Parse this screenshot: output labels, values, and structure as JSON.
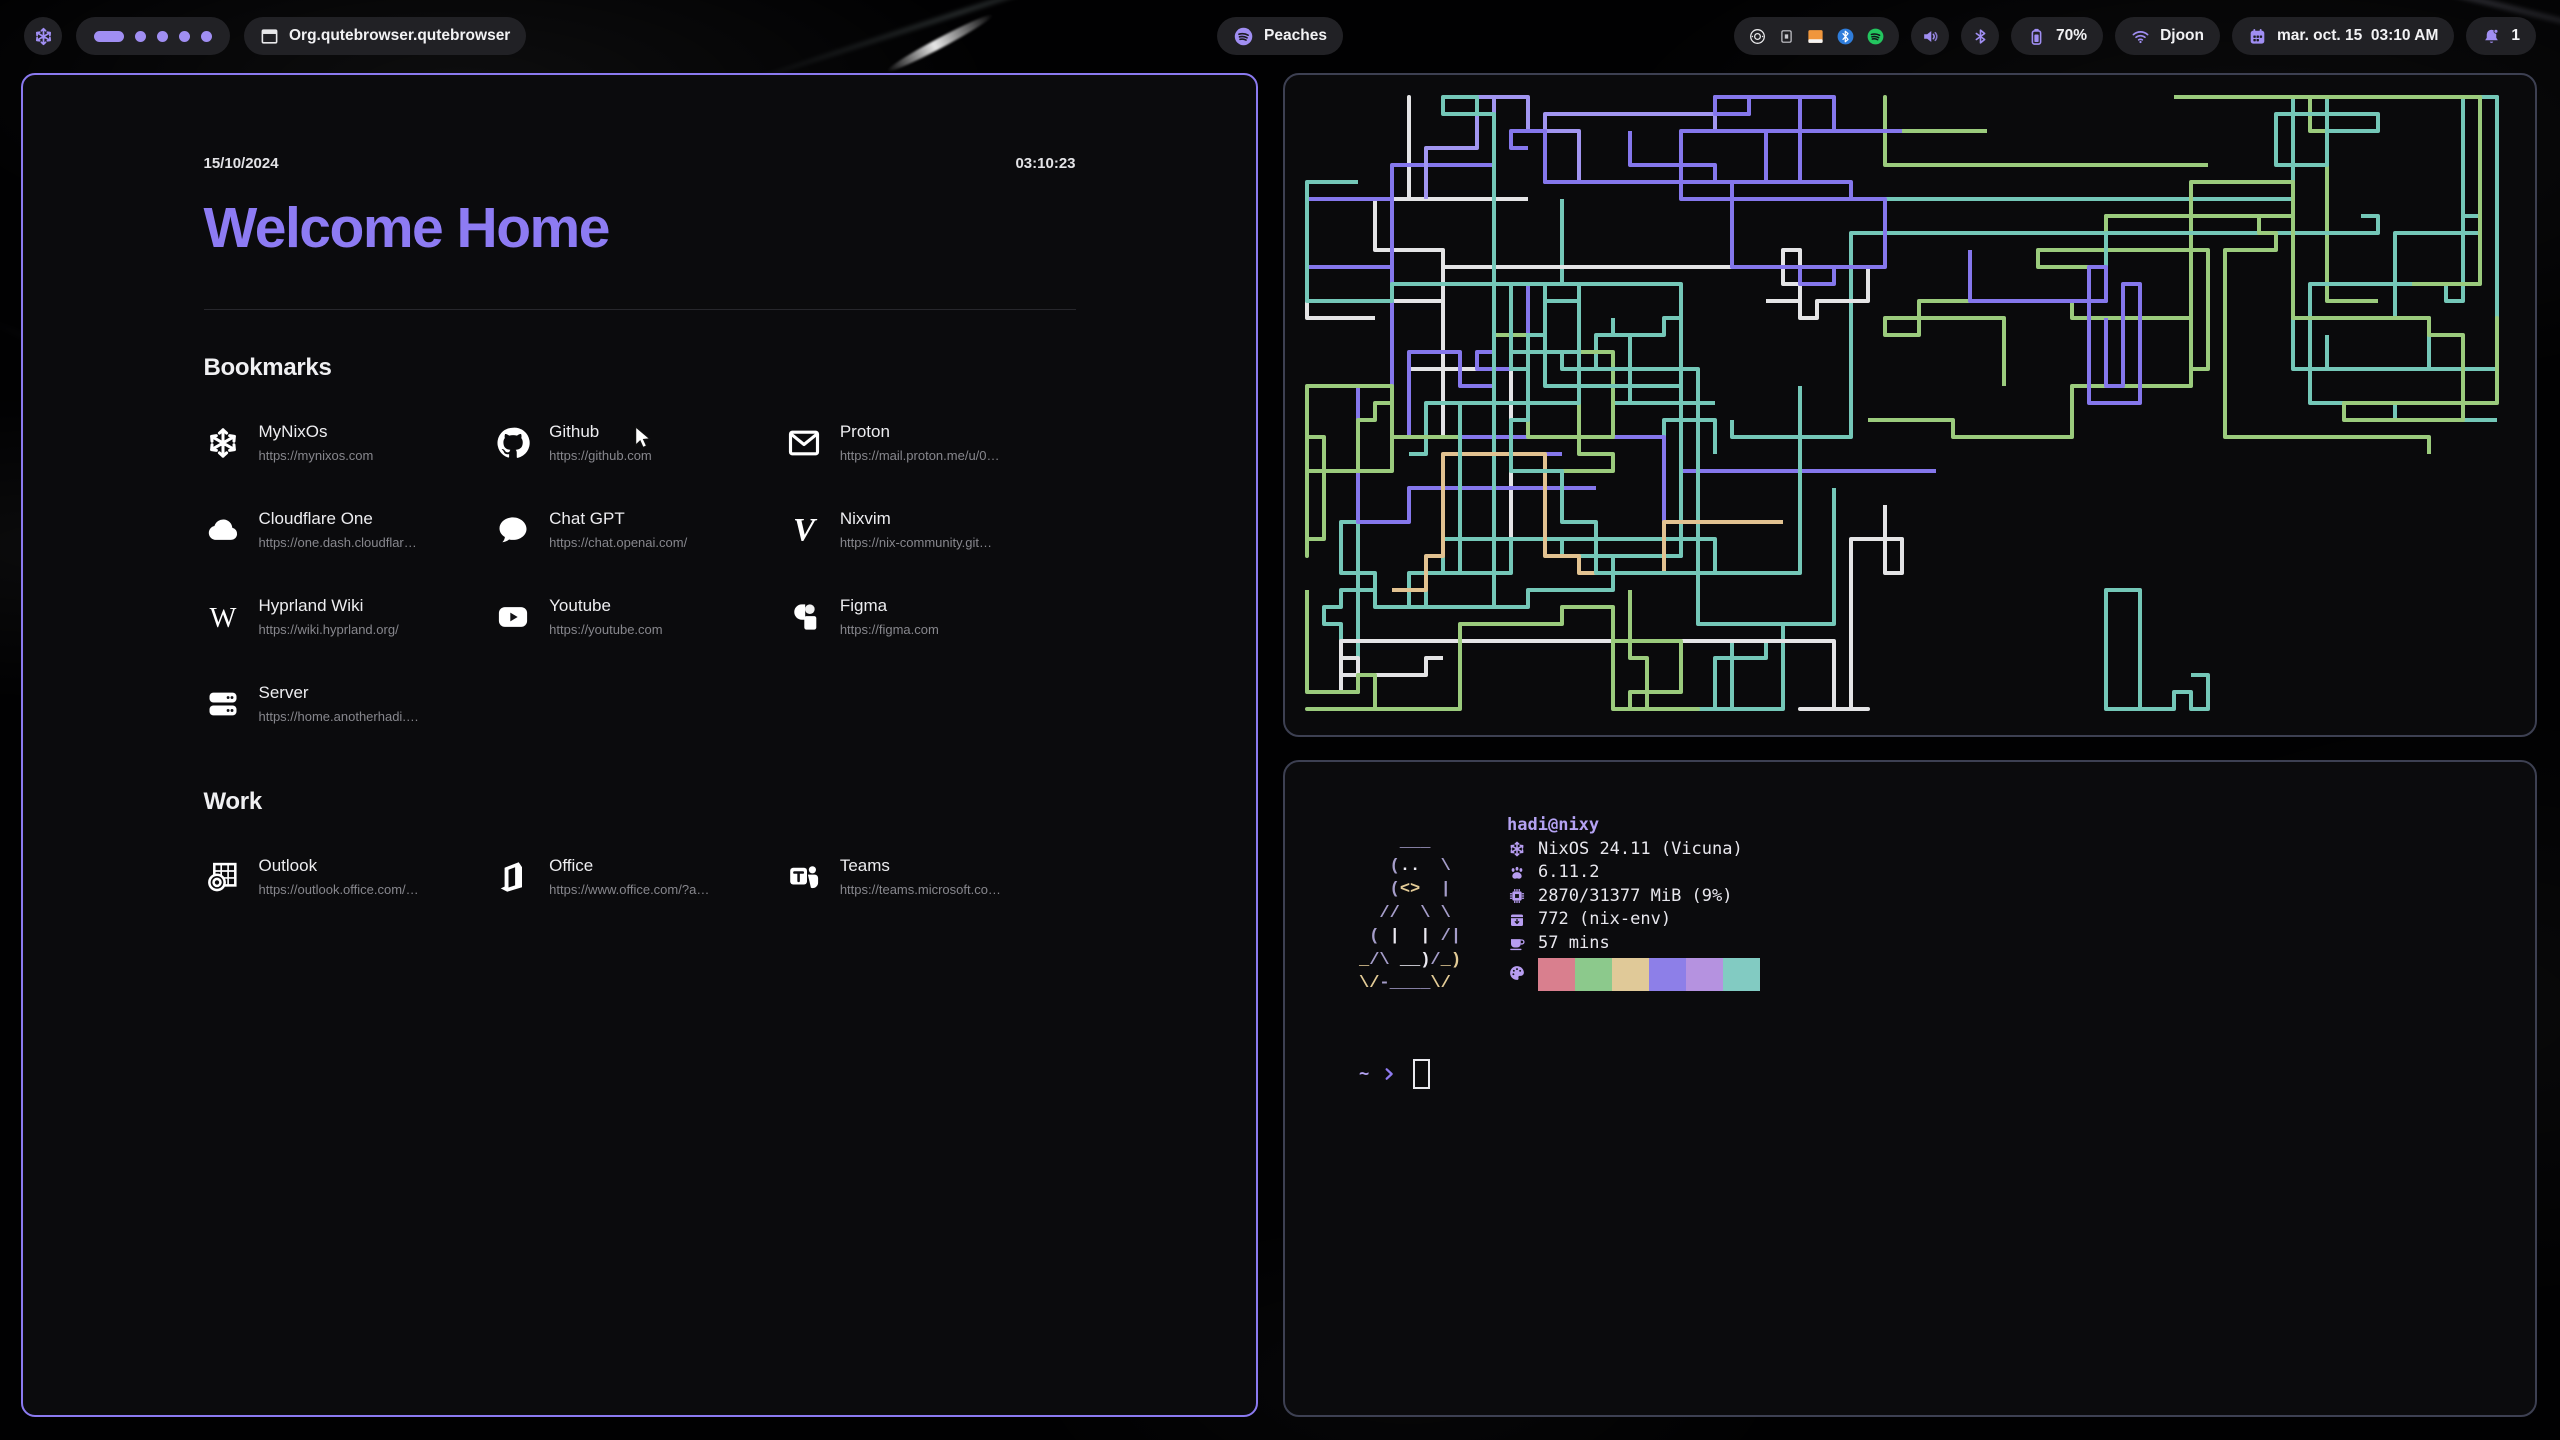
{
  "taskbar": {
    "logo_icon": "nix-snowflake",
    "workspaces": {
      "active_index": 0,
      "total": 5
    },
    "window_icon": "window",
    "window_title": "Org.qutebrowser.qutebrowser",
    "media": {
      "icon": "spotify",
      "label": "Peaches"
    },
    "tray_icons": [
      "record",
      "keyboard",
      "files",
      "bluetooth-badge",
      "spotify-badge"
    ],
    "volume_icon": "speaker",
    "bluetooth_icon": "bluetooth",
    "battery": {
      "icon": "battery",
      "label": "70%"
    },
    "network": {
      "icon": "wifi",
      "label": "Djoon"
    },
    "clock": {
      "icon": "calendar",
      "label": "mar. oct. 15  03:10 AM"
    },
    "notifications": {
      "icon": "bell",
      "count": "1"
    }
  },
  "browser": {
    "date": "15/10/2024",
    "time": "03:10:23",
    "title": "Welcome Home",
    "sections": [
      {
        "heading": "Bookmarks",
        "items": [
          {
            "name": "MyNixOs",
            "url": "https://mynixos.com",
            "icon": "nix-snowflake"
          },
          {
            "name": "Github",
            "url": "https://github.com",
            "icon": "github"
          },
          {
            "name": "Proton",
            "url": "https://mail.proton.me/u/0…",
            "icon": "mail"
          },
          {
            "name": "Cloudflare One",
            "url": "https://one.dash.cloudflar…",
            "icon": "cloud"
          },
          {
            "name": "Chat GPT",
            "url": "https://chat.openai.com/",
            "icon": "chat"
          },
          {
            "name": "Nixvim",
            "url": "https://nix-community.git…",
            "icon": "nixvim"
          },
          {
            "name": "Hyprland Wiki",
            "url": "https://wiki.hyprland.org/",
            "icon": "wikipedia"
          },
          {
            "name": "Youtube",
            "url": "https://youtube.com",
            "icon": "youtube"
          },
          {
            "name": "Figma",
            "url": "https://figma.com",
            "icon": "figma"
          },
          {
            "name": "Server",
            "url": "https://home.anotherhadi.…",
            "icon": "server"
          }
        ]
      },
      {
        "heading": "Work",
        "items": [
          {
            "name": "Outlook",
            "url": "https://outlook.office.com/…",
            "icon": "outlook"
          },
          {
            "name": "Office",
            "url": "https://www.office.com/?a…",
            "icon": "office"
          },
          {
            "name": "Teams",
            "url": "https://teams.microsoft.co…",
            "icon": "teams"
          }
        ]
      }
    ]
  },
  "terminal": {
    "user_host": "hadi@nixy",
    "ascii_art": [
      [
        [
          "p",
          "    ___"
        ]
      ],
      [
        [
          "p",
          "   ("
        ],
        [
          "w",
          ".."
        ],
        [
          "p",
          "  \\"
        ]
      ],
      [
        [
          "p",
          "   ("
        ],
        [
          "y",
          "<>"
        ],
        [
          "p",
          "  |"
        ]
      ],
      [
        [
          "p",
          "  //  \\ \\"
        ]
      ],
      [
        [
          "p",
          " ( "
        ],
        [
          "w",
          "|  |"
        ],
        [
          "p",
          " /|"
        ]
      ],
      [
        [
          "y",
          "_"
        ],
        [
          "p",
          "/\\ "
        ],
        [
          "w",
          "__)"
        ],
        [
          "p",
          "/"
        ],
        [
          "y",
          "_)"
        ]
      ],
      [
        [
          "y",
          "\\/"
        ],
        [
          "p",
          "-____"
        ],
        [
          "y",
          "\\/"
        ]
      ]
    ],
    "info": [
      {
        "icon": "snowflake",
        "text": "NixOS 24.11 (Vicuna)"
      },
      {
        "icon": "kernel",
        "text": "6.11.2"
      },
      {
        "icon": "memory",
        "text": "2870/31377 MiB (9%)"
      },
      {
        "icon": "package",
        "text": "772 (nix-env)"
      },
      {
        "icon": "uptime",
        "text": "57 mins"
      }
    ],
    "palette": [
      "#d97f8e",
      "#8cc98c",
      "#e0c998",
      "#8d7fe8",
      "#b592e0",
      "#82cbc2"
    ],
    "prompt_path": "~",
    "prompt_char": "❯"
  },
  "pipes": {
    "seed": 1337,
    "count": 30,
    "step": 17,
    "stroke": 4,
    "margin": 22,
    "colors": [
      {
        "hex": "#74c7b8",
        "w": 0.3
      },
      {
        "hex": "#8577ec",
        "w": 0.18
      },
      {
        "hex": "#9bcb7d",
        "w": 0.13
      },
      {
        "hex": "#e4e4e6",
        "w": 0.12
      },
      {
        "hex": "#e2c291",
        "w": 0.1
      },
      {
        "hex": "#7fd0a0",
        "w": 0.09
      },
      {
        "hex": "#a195f0",
        "w": 0.08
      }
    ]
  },
  "colors": {
    "accent": "#a08ef2",
    "browser_border": "#8b7af0",
    "terminal_border": "#3d4052",
    "pill_bg": "#222227",
    "title_purple": "#8d7bf3"
  }
}
